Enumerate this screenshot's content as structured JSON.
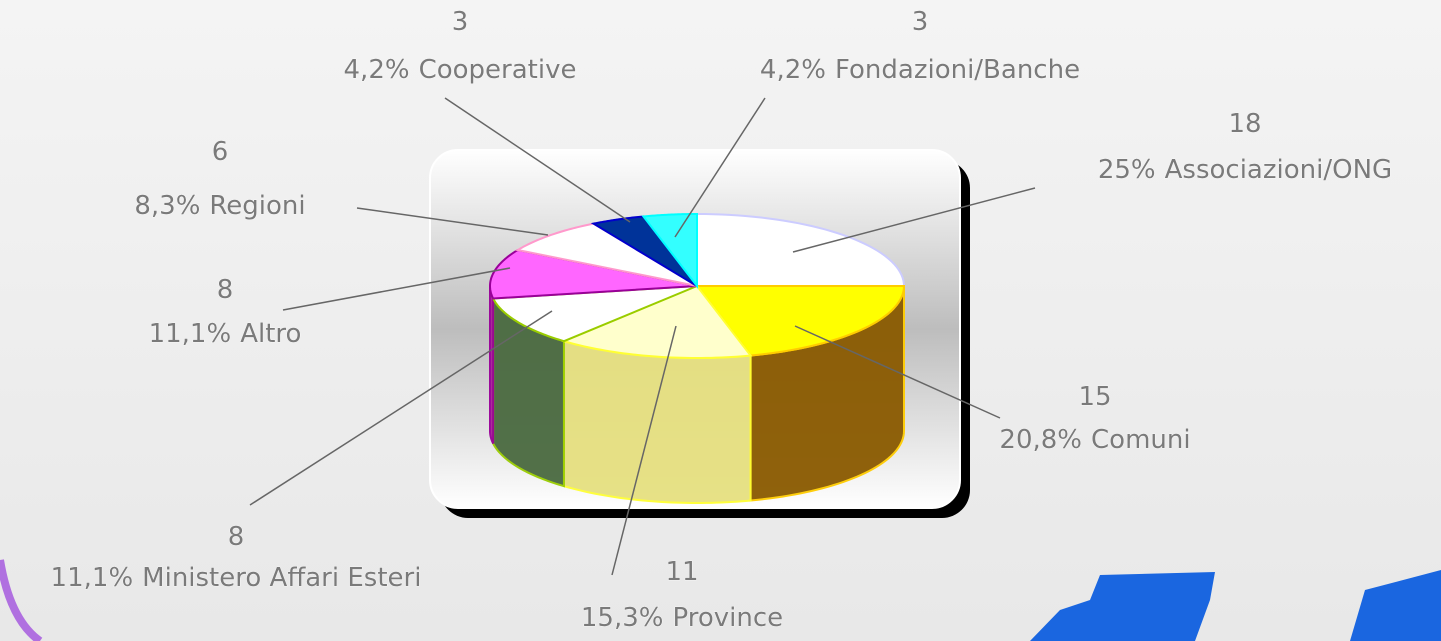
{
  "chart_data": {
    "type": "pie",
    "categories": [
      "Associazioni/ONG",
      "Comuni",
      "Province",
      "Ministero Affari Esteri",
      "Altro",
      "Regioni",
      "Cooperative",
      "Fondazioni/Banche"
    ],
    "values": [
      18,
      15,
      11,
      8,
      8,
      6,
      3,
      3
    ],
    "percents": [
      25,
      20.8,
      15.3,
      11.1,
      11.1,
      8.3,
      4.2,
      4.2
    ],
    "percent_labels": [
      "25%",
      "20,8%",
      "15,3%",
      "11,1%",
      "11,1%",
      "8,3%",
      "4,2%",
      "4,2%"
    ],
    "colors": [
      "#ffffff",
      "#ffff00",
      "#ffffcc",
      "#ffffff",
      "#ff66ff",
      "#ffffff",
      "#003399",
      "#33ffff"
    ],
    "side_colors": [
      "#dddddd",
      "#8a5a00",
      "#e6e080",
      "#4a6a40",
      "#aa2299",
      "#dddddd",
      "#002266",
      "#22aaaa"
    ],
    "edge_colors": [
      "#ccccff",
      "#ffcc00",
      "#ffff33",
      "#99cc00",
      "#990099",
      "#ff99cc",
      "#0000cc",
      "#00ffff"
    ]
  }
}
